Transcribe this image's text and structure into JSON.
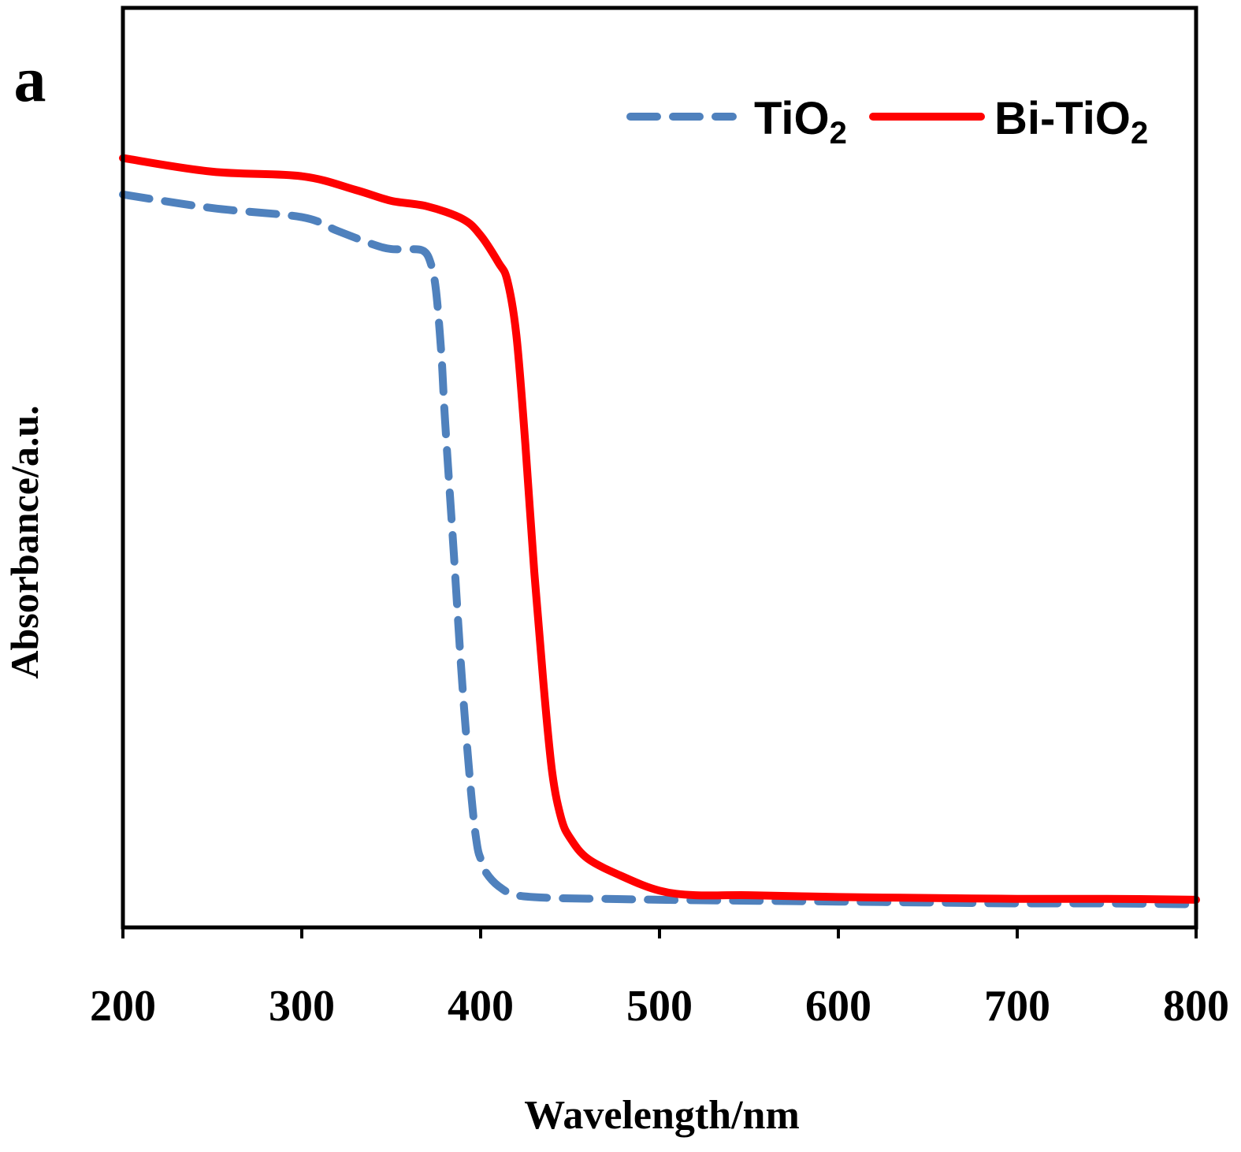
{
  "chart_data": {
    "type": "line",
    "panel_label": "a",
    "title": "",
    "xlabel": "Wavelength/nm",
    "ylabel": "Absorbance/a.u.",
    "xlim": [
      200,
      800
    ],
    "ylim": [
      0,
      1
    ],
    "xticks": [
      200,
      300,
      400,
      500,
      600,
      700,
      800
    ],
    "xtick_labels": [
      "200",
      "300",
      "400",
      "500",
      "600",
      "700",
      "800"
    ],
    "y_tick_labels_shown": false,
    "grid": false,
    "legend_position": "top-right",
    "series": [
      {
        "name": "TiO2",
        "label_main": "TiO",
        "label_sub": "2",
        "color": "#4f81bd",
        "style": "dashed",
        "x": [
          200,
          250,
          300,
          320,
          340,
          350,
          360,
          368,
          372,
          375,
          378,
          380,
          385,
          390,
          395,
          398,
          400,
          403,
          410,
          420,
          440,
          470,
          500,
          550,
          600,
          650,
          700,
          750,
          800
        ],
        "y": [
          0.795,
          0.78,
          0.77,
          0.755,
          0.74,
          0.735,
          0.735,
          0.733,
          0.72,
          0.69,
          0.62,
          0.55,
          0.4,
          0.25,
          0.13,
          0.08,
          0.065,
          0.05,
          0.035,
          0.025,
          0.022,
          0.021,
          0.02,
          0.019,
          0.018,
          0.017,
          0.016,
          0.016,
          0.015
        ]
      },
      {
        "name": "Bi-TiO2",
        "label_main": "Bi-TiO",
        "label_sub": "2",
        "color": "#ff0000",
        "style": "solid",
        "x": [
          200,
          250,
          300,
          330,
          350,
          370,
          390,
          400,
          410,
          415,
          420,
          425,
          430,
          435,
          440,
          445,
          450,
          460,
          480,
          500,
          520,
          550,
          600,
          650,
          700,
          750,
          800
        ],
        "y": [
          0.835,
          0.82,
          0.815,
          0.8,
          0.788,
          0.782,
          0.768,
          0.75,
          0.72,
          0.7,
          0.64,
          0.52,
          0.38,
          0.26,
          0.16,
          0.11,
          0.088,
          0.065,
          0.045,
          0.03,
          0.025,
          0.025,
          0.023,
          0.022,
          0.021,
          0.021,
          0.02
        ]
      }
    ]
  }
}
